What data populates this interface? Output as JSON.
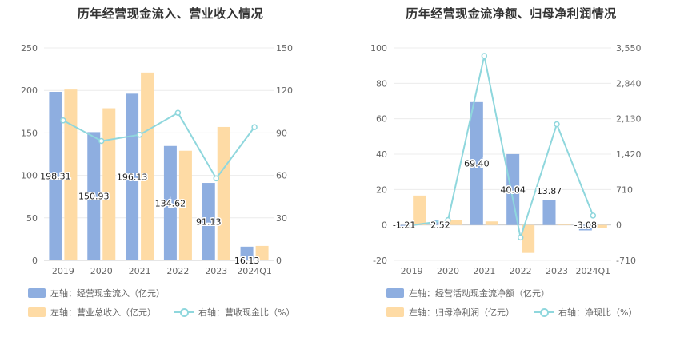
{
  "colors": {
    "bar_primary": "#8eaee0",
    "bar_secondary": "#fedba5",
    "line": "#8fd7dd",
    "grid": "#ececec",
    "axis_text": "#666666",
    "label_text": "#222222"
  },
  "chart_data": [
    {
      "type": "bar",
      "title": "历年经营现金流入、营业收入情况",
      "categories": [
        "2019",
        "2020",
        "2021",
        "2022",
        "2023",
        "2024Q1"
      ],
      "left_axis": {
        "ylim": [
          0,
          250
        ],
        "ticks": [
          0,
          50,
          100,
          150,
          200,
          250
        ]
      },
      "right_axis": {
        "ylim": [
          0,
          150
        ],
        "ticks": [
          0,
          30,
          60,
          90,
          120,
          150
        ]
      },
      "series": [
        {
          "name": "左轴：经营现金流入（亿元）",
          "kind": "bar",
          "axis": "left",
          "values": [
            198.31,
            150.93,
            196.13,
            134.62,
            91.13,
            16.13
          ],
          "labels": [
            "198.31",
            "150.93",
            "196.13",
            "134.62",
            "91.13",
            "16.13"
          ]
        },
        {
          "name": "左轴：营业总收入（亿元）",
          "kind": "bar",
          "axis": "left",
          "values": [
            201,
            179,
            221,
            129,
            157,
            17
          ]
        },
        {
          "name": "右轴：营收现金比（%）",
          "kind": "line",
          "axis": "right",
          "values": [
            98.8,
            84.3,
            88.7,
            104.2,
            57.9,
            94.1
          ]
        }
      ]
    },
    {
      "type": "bar",
      "title": "历年经营现金流净额、归母净利润情况",
      "categories": [
        "2019",
        "2020",
        "2021",
        "2022",
        "2023",
        "2024Q1"
      ],
      "left_axis": {
        "ylim": [
          -20,
          100
        ],
        "ticks": [
          -20,
          0,
          20,
          40,
          60,
          80,
          100
        ]
      },
      "right_axis": {
        "ylim": [
          -710,
          3550
        ],
        "ticks": [
          "-710",
          "0",
          "710",
          "1,420",
          "2,130",
          "2,840",
          "3,550"
        ]
      },
      "series": [
        {
          "name": "左轴：经营活动现金流净额（亿元）",
          "kind": "bar",
          "axis": "left",
          "values": [
            -1.21,
            2.52,
            69.4,
            40.04,
            13.87,
            -3.08
          ],
          "labels": [
            "-1.21",
            "2.52",
            "69.40",
            "40.04",
            "13.87",
            "-3.08"
          ]
        },
        {
          "name": "左轴：归母净利润（亿元）",
          "kind": "bar",
          "axis": "left",
          "values": [
            16.6,
            2.6,
            2.0,
            -15.8,
            0.7,
            -1.6
          ]
        },
        {
          "name": "右轴：净现比（%）",
          "kind": "line",
          "axis": "right",
          "values": [
            -7,
            97,
            3390,
            -252,
            2020,
            188
          ]
        }
      ]
    }
  ]
}
